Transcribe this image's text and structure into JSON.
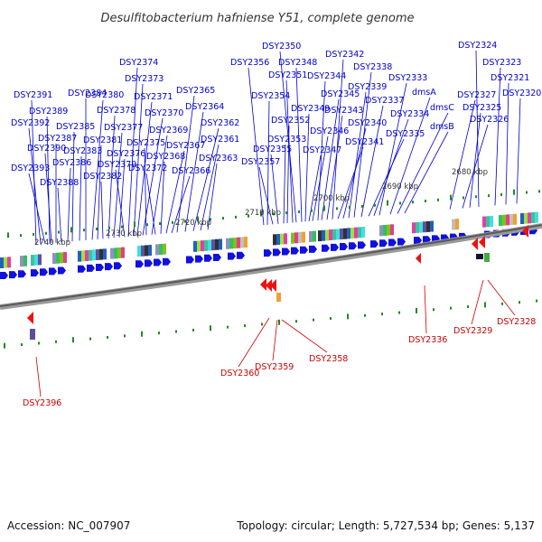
{
  "title": "Desulfitobacterium hafniense Y51, complete genome",
  "accession": "Accession: NC_007907",
  "summary": "Topology: circular; Length: 5,727,534 bp; Genes: 5,137",
  "colors": {
    "forward_gene": "#1010e0",
    "reverse_gene": "#ee0000",
    "label_forward": "#0000cc",
    "label_reverse": "#cc0000",
    "backbone": "#555555",
    "tick": "#228822"
  },
  "scale_labels": [
    "2680 kbp",
    "2690 kbp",
    "2700 kbp",
    "2710 kbp",
    "2720 kbp",
    "2730 kbp",
    "2740 kbp"
  ],
  "forward_labels": [
    "DSY2391",
    "DSY2392",
    "DSY2393",
    "DSY2389",
    "DSY2390",
    "DSY2387",
    "DSY2388",
    "DSY2386",
    "DSY2385",
    "DSY2383",
    "DSY2384",
    "DSY2380",
    "DSY2381",
    "DSY2382",
    "DSY2378",
    "DSY2377",
    "DSY2376",
    "DSY2379",
    "DSY2374",
    "DSY2373",
    "DSY2371",
    "DSY2370",
    "DSY2375",
    "DSY2369",
    "DSY2372",
    "DSY2368",
    "DSY2367",
    "DSY2366",
    "DSY2365",
    "DSY2364",
    "DSY2362",
    "DSY2361",
    "DSY2363",
    "DSY2356",
    "DSY2354",
    "DSY2357",
    "DSY2355",
    "DSY2353",
    "DSY2352",
    "DSY2351",
    "DSY2350",
    "DSY2348",
    "DSY2349",
    "DSY2347",
    "DSY2346",
    "DSY2344",
    "DSY2345",
    "DSY2343",
    "DSY2342",
    "DSY2341",
    "DSY2340",
    "DSY2339",
    "DSY2338",
    "DSY2337",
    "DSY2335",
    "DSY2334",
    "DSY2333",
    "dmsA",
    "dmsC",
    "dmsB",
    "DSY2327",
    "DSY2326",
    "DSY2325",
    "DSY2324",
    "DSY2323",
    "DSY2321",
    "DSY2320"
  ],
  "reverse_labels": [
    "DSY2396",
    "DSY2360",
    "DSY2359",
    "DSY2358",
    "DSY2336",
    "DSY2329",
    "DSY2328"
  ]
}
